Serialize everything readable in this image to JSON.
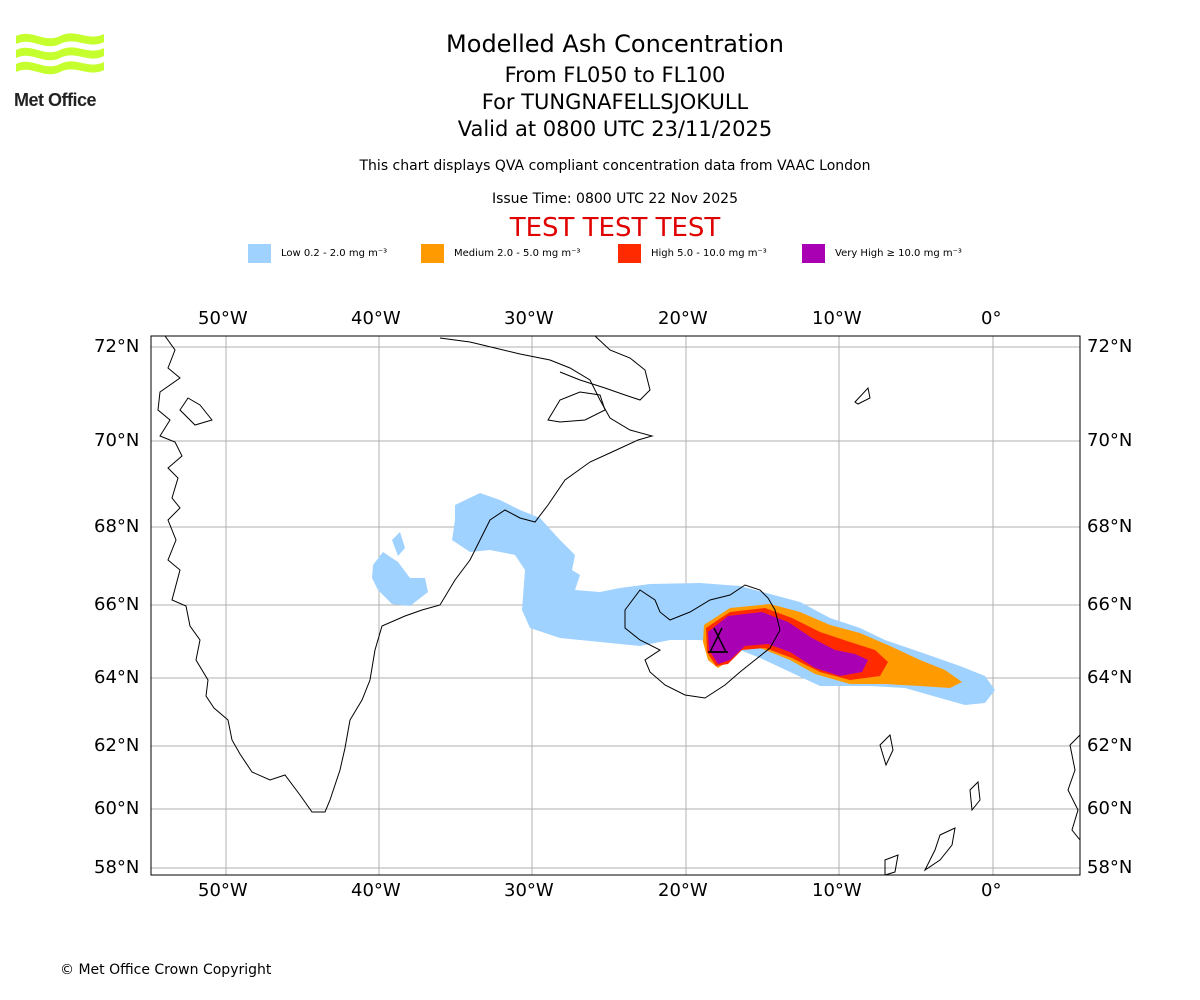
{
  "logo": {
    "text": "Met Office"
  },
  "header": {
    "title": "Modelled Ash Concentration",
    "flight_levels": "From FL050 to FL100",
    "volcano": "For TUNGNAFELLSJOKULL",
    "valid": "Valid at 0800 UTC 23/11/2025",
    "description": "This chart displays QVA compliant concentration data from VAAC London",
    "issue_time": "Issue Time: 0800 UTC 22 Nov 2025",
    "test_banner": "TEST TEST TEST"
  },
  "legend": [
    {
      "label": "Low 0.2 - 2.0 mg m⁻³",
      "color": "#a0d2ff"
    },
    {
      "label": "Medium 2.0 - 5.0 mg m⁻³",
      "color": "#ff9a00"
    },
    {
      "label": "High 5.0 - 10.0 mg m⁻³",
      "color": "#ff2a00"
    },
    {
      "label": "Very High ≥ 10.0 mg m⁻³",
      "color": "#aa00b4"
    }
  ],
  "axes": {
    "lon_labels": [
      "50°W",
      "40°W",
      "30°W",
      "20°W",
      "10°W",
      "0°"
    ],
    "lat_labels": [
      "72°N",
      "70°N",
      "68°N",
      "66°N",
      "64°N",
      "62°N",
      "60°N",
      "58°N"
    ]
  },
  "colors": {
    "land_outline": "#000000",
    "grid": "#b0b0b0",
    "test_banner": "#e00000"
  },
  "footer": {
    "copyright": "© Met Office Crown Copyright"
  }
}
